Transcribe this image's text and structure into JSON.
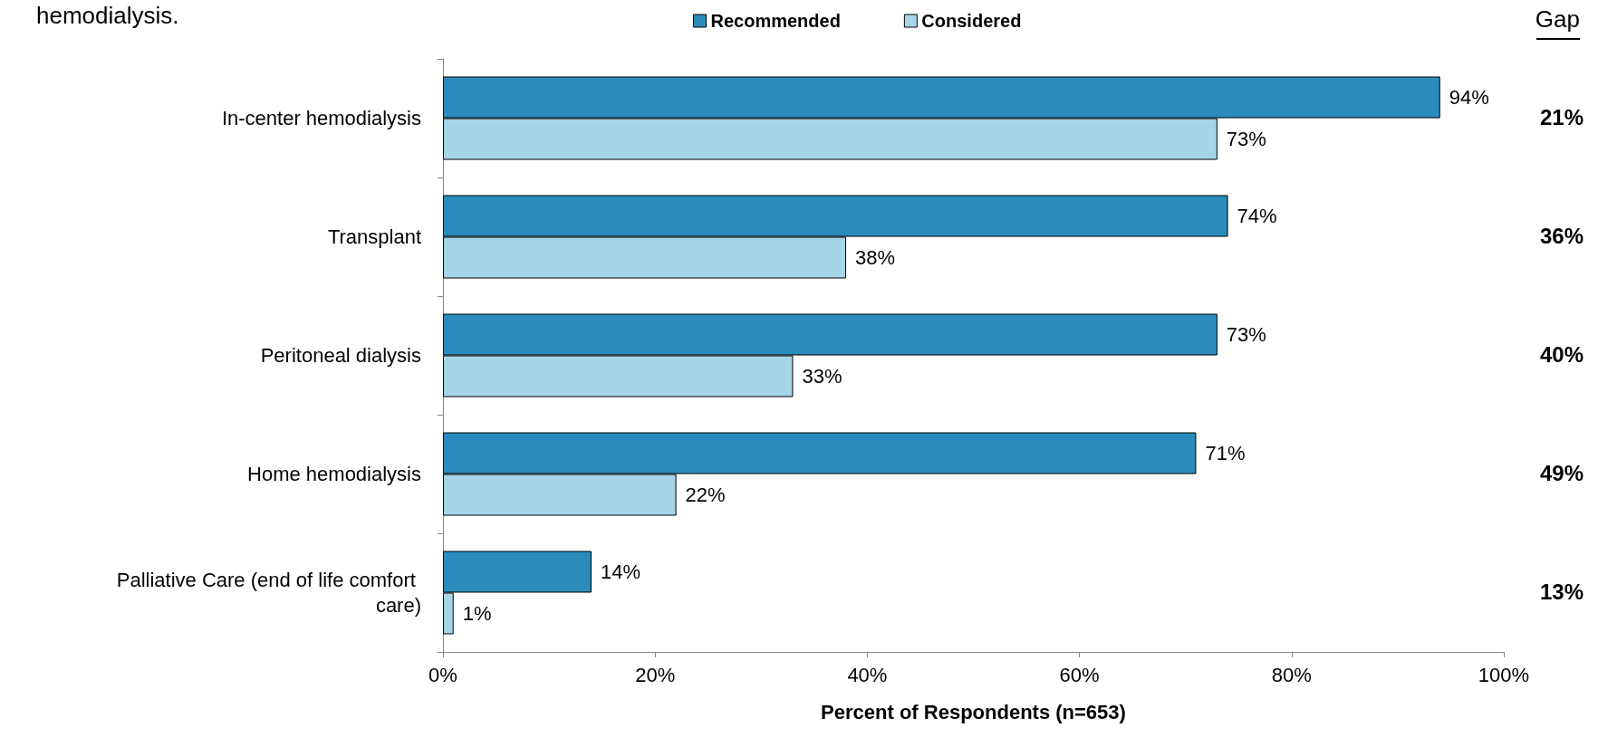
{
  "chart_data": {
    "type": "bar",
    "orientation": "horizontal",
    "xlabel": "Percent of Respondents (n=653)",
    "categories": [
      "In-center hemodialysis",
      "Transplant",
      "Peritoneal dialysis",
      "Home hemodialysis",
      "Palliative Care (end of life comfort care)"
    ],
    "series": [
      {
        "name": "Recommended",
        "color": "#2b8cbb",
        "values": [
          94,
          74,
          73,
          71,
          14
        ],
        "value_labels": [
          "94%",
          "74%",
          "73%",
          "71%",
          "14%"
        ]
      },
      {
        "name": "Considered",
        "color": "#a6d5ea",
        "values": [
          73,
          38,
          33,
          22,
          1
        ],
        "value_labels": [
          "73%",
          "38%",
          "33%",
          "22%",
          "1%"
        ]
      }
    ],
    "xlim": [
      0,
      100
    ],
    "xticks": [
      {
        "value": 0,
        "label": "0%"
      },
      {
        "value": 20,
        "label": "20%"
      },
      {
        "value": 40,
        "label": "40%"
      },
      {
        "value": 60,
        "label": "60%"
      },
      {
        "value": 80,
        "label": "80%"
      },
      {
        "value": 100,
        "label": "100%"
      }
    ],
    "grid": false,
    "legend": "top",
    "annotations": [
      "hemodialysis.",
      "Gap",
      "21%",
      "36%",
      "40%",
      "49%",
      "13%"
    ]
  }
}
